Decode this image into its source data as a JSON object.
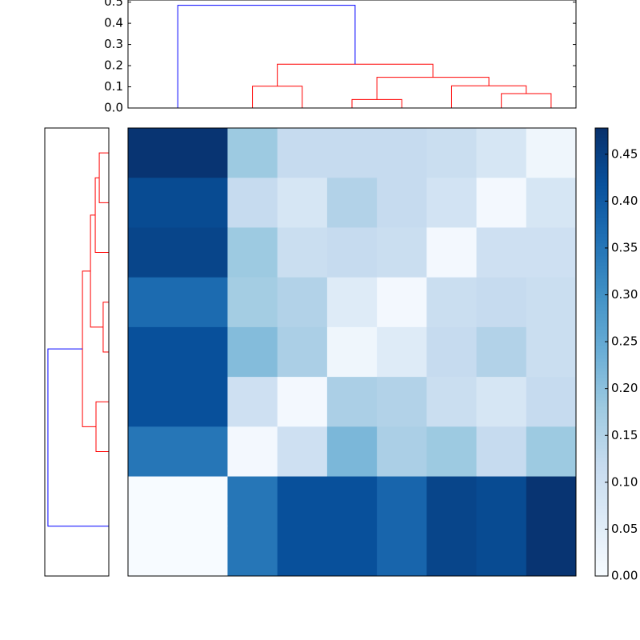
{
  "chart_data": [
    {
      "type": "dendrogram",
      "orientation": "top",
      "xlim": [
        0,
        90
      ],
      "ylim": [
        0,
        0.51
      ],
      "yticks": [
        {
          "value": 0,
          "label": "0.0"
        },
        0.1,
        0.2,
        0.3,
        0.4,
        0.5
      ],
      "links": [
        {
          "color": "#008000",
          "icoord": [
            5,
            5,
            15,
            15
          ],
          "dcoord": [
            0,
            0,
            0,
            0
          ]
        },
        {
          "color": "#ff0000",
          "icoord": [
            25,
            25,
            35,
            35
          ],
          "dcoord": [
            0,
            0.103,
            0.103,
            0
          ]
        },
        {
          "color": "#ff0000",
          "icoord": [
            45,
            45,
            55,
            55
          ],
          "dcoord": [
            0,
            0.04,
            0.04,
            0
          ]
        },
        {
          "color": "#ff0000",
          "icoord": [
            75,
            75,
            85,
            85
          ],
          "dcoord": [
            0,
            0.068,
            0.068,
            0
          ]
        },
        {
          "color": "#ff0000",
          "icoord": [
            65,
            65,
            80,
            80
          ],
          "dcoord": [
            0,
            0.105,
            0.105,
            0.068
          ]
        },
        {
          "color": "#ff0000",
          "icoord": [
            50,
            50,
            72.5,
            72.5
          ],
          "dcoord": [
            0.04,
            0.145,
            0.145,
            0.105
          ]
        },
        {
          "color": "#ff0000",
          "icoord": [
            30,
            30,
            61.25,
            61.25
          ],
          "dcoord": [
            0.103,
            0.207,
            0.207,
            0.145
          ]
        },
        {
          "color": "#0000ff",
          "icoord": [
            10,
            10,
            45.625,
            45.625
          ],
          "dcoord": [
            0,
            0.485,
            0.485,
            0.207
          ]
        }
      ]
    },
    {
      "type": "dendrogram",
      "orientation": "left",
      "xlim": [
        0.51,
        0
      ],
      "ylim": [
        0,
        90
      ],
      "links": [
        {
          "color": "#ff0000",
          "icoord": [
            5,
            5,
            15,
            15
          ],
          "dcoord": [
            0,
            0.076,
            0.076,
            0
          ]
        },
        {
          "color": "#ff0000",
          "icoord": [
            10,
            10,
            25,
            25
          ],
          "dcoord": [
            0.076,
            0.108,
            0.108,
            0
          ]
        },
        {
          "color": "#ff0000",
          "icoord": [
            35,
            35,
            45,
            45
          ],
          "dcoord": [
            0,
            0.045,
            0.045,
            0
          ]
        },
        {
          "color": "#ff0000",
          "icoord": [
            17.5,
            17.5,
            40,
            40
          ],
          "dcoord": [
            0.108,
            0.146,
            0.146,
            0.045
          ]
        },
        {
          "color": "#ff0000",
          "icoord": [
            55,
            55,
            65,
            65
          ],
          "dcoord": [
            0,
            0.102,
            0.102,
            0
          ]
        },
        {
          "color": "#ff0000",
          "icoord": [
            28.75,
            28.75,
            60,
            60
          ],
          "dcoord": [
            0.146,
            0.21,
            0.21,
            0.102
          ]
        },
        {
          "color": "#008000",
          "icoord": [
            75,
            75,
            85,
            85
          ],
          "dcoord": [
            0,
            0,
            0,
            0
          ]
        },
        {
          "color": "#0000ff",
          "icoord": [
            44.375,
            44.375,
            80,
            80
          ],
          "dcoord": [
            0.21,
            0.485,
            0.485,
            0
          ]
        }
      ]
    },
    {
      "type": "heatmap",
      "colormap": "Blues",
      "clim": [
        0,
        0.478
      ],
      "cticks": [
        {
          "value": 0,
          "label": "0.00"
        },
        {
          "value": 0.05,
          "label": "0.05"
        },
        {
          "value": 0.1,
          "label": "0.10"
        },
        {
          "value": 0.15,
          "label": "0.15"
        },
        {
          "value": 0.2,
          "label": "0.20"
        },
        {
          "value": 0.25,
          "label": "0.25"
        },
        {
          "value": 0.3,
          "label": "0.30"
        },
        {
          "value": 0.35,
          "label": "0.35"
        },
        {
          "value": 0.4,
          "label": "0.40"
        },
        {
          "value": 0.45,
          "label": "0.45"
        }
      ],
      "matrix": [
        [
          0.47,
          0.47,
          0.18,
          0.12,
          0.12,
          0.12,
          0.11,
          0.08,
          0.02
        ],
        [
          0.43,
          0.43,
          0.12,
          0.08,
          0.15,
          0.12,
          0.09,
          0.01,
          0.08
        ],
        [
          0.44,
          0.44,
          0.18,
          0.11,
          0.12,
          0.11,
          0.01,
          0.1,
          0.1
        ],
        [
          0.37,
          0.37,
          0.17,
          0.15,
          0.06,
          0.01,
          0.11,
          0.12,
          0.11
        ],
        [
          0.42,
          0.42,
          0.21,
          0.16,
          0.02,
          0.06,
          0.12,
          0.15,
          0.11
        ],
        [
          0.42,
          0.42,
          0.1,
          0.01,
          0.16,
          0.15,
          0.11,
          0.08,
          0.12
        ],
        [
          0.35,
          0.35,
          0.01,
          0.1,
          0.22,
          0.16,
          0.18,
          0.12,
          0.18
        ],
        [
          0,
          0,
          0.35,
          0.42,
          0.42,
          0.38,
          0.44,
          0.43,
          0.47
        ],
        [
          0,
          0,
          0.35,
          0.42,
          0.42,
          0.38,
          0.44,
          0.43,
          0.47
        ]
      ]
    }
  ]
}
